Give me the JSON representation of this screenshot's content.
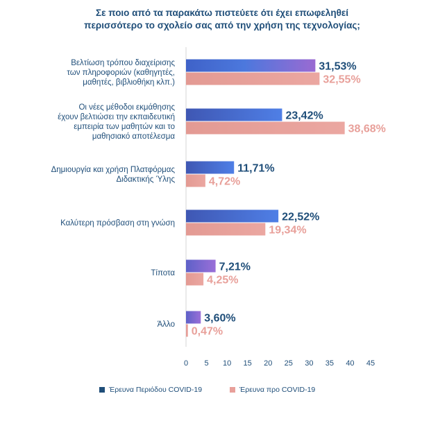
{
  "chart_data": {
    "type": "bar",
    "orientation": "horizontal",
    "title_lines": [
      "Σε ποιο από τα παρακάτω πιστεύετε ότι έχει επωφεληθεί",
      "περισσότερο το σχολείο σας από την χρήση της τεχνολογίας;"
    ],
    "categories": [
      [
        "Βελτίωση τρόπου διαχείρισης",
        "των πληροφοριών (καθηγητές,",
        "μαθητές, βιβλιοθήκη κλπ.)"
      ],
      [
        "Οι νέες μέθοδοι εκμάθησης",
        "έχουν βελτιώσει την εκπαιδευτική",
        "εμπειρία των μαθητών και το",
        "μαθησιακό αποτέλεσμα"
      ],
      [
        "Δημιουργία και χρήση Πλατφόρμας",
        "Διδακτικής Ύλης"
      ],
      [
        "Καλύτερη πρόσβαση στη γνώση"
      ],
      [
        "Τίποτα"
      ],
      [
        "Άλλο"
      ]
    ],
    "series": [
      {
        "name": "Έρευνα Περιόδου COVID-19",
        "values": [
          31.53,
          23.42,
          11.71,
          22.52,
          7.21,
          3.6
        ],
        "labels": [
          "31,53%",
          "23,42%",
          "11,71%",
          "22,52%",
          "7,21%",
          "3,60%"
        ],
        "color": "#1f4e79"
      },
      {
        "name": "Έρευνα προ COVID-19",
        "values": [
          32.55,
          38.68,
          4.72,
          19.34,
          4.25,
          0.47
        ],
        "labels": [
          "32,55%",
          "38,68%",
          "4,72%",
          "19,34%",
          "4,25%",
          "0,47%"
        ],
        "color": "#e8a09a"
      }
    ],
    "xticks": [
      "0",
      "5",
      "10",
      "15",
      "20",
      "25",
      "30",
      "35",
      "40",
      "45"
    ],
    "xlim": [
      0,
      45
    ],
    "legend_position": "bottom",
    "grid": false
  }
}
